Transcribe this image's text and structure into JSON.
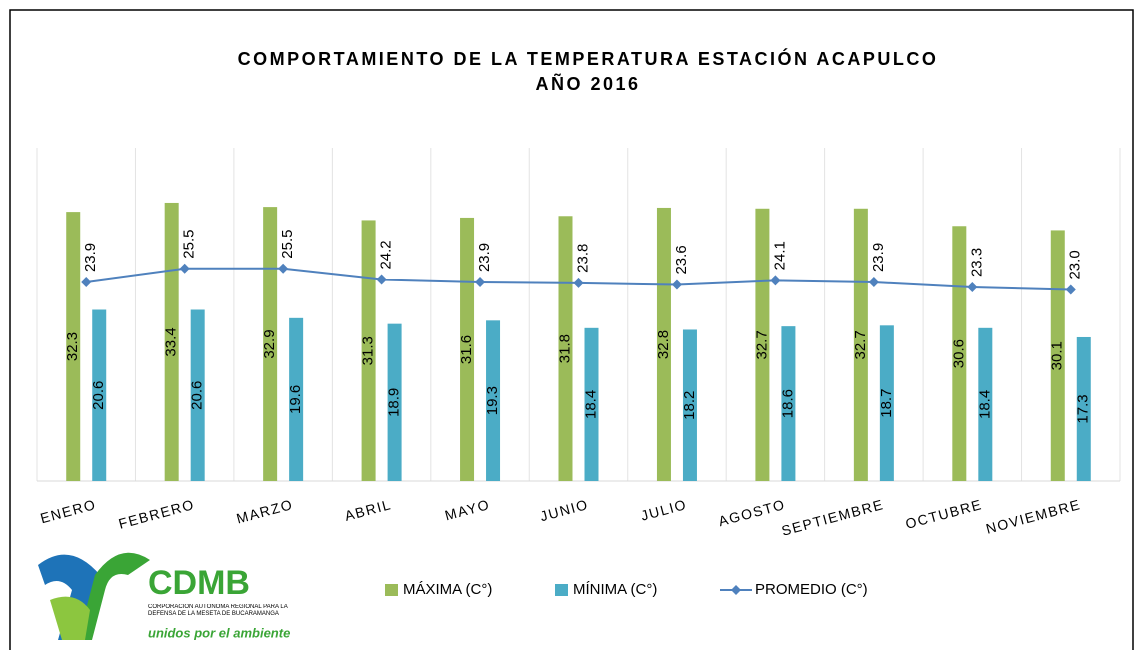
{
  "chart_data": {
    "type": "bar",
    "title": "COMPORTAMIENTO DE LA TEMPERATURA ESTACIÓN ACAPULCO",
    "subtitle": "AÑO 2016",
    "categories": [
      "ENERO",
      "FEBRERO",
      "MARZO",
      "ABRIL",
      "MAYO",
      "JUNIO",
      "JULIO",
      "AGOSTO",
      "SEPTIEMBRE",
      "OCTUBRE",
      "NOVIEMBRE"
    ],
    "ylim": [
      0,
      40
    ],
    "series": [
      {
        "name": "MÁXIMA (C°)",
        "type": "bar",
        "color": "#9bbb59",
        "values": [
          32.3,
          33.4,
          32.9,
          31.3,
          31.6,
          31.8,
          32.8,
          32.7,
          32.7,
          30.6,
          30.1
        ]
      },
      {
        "name": "MÍNIMA (C°)",
        "type": "bar",
        "color": "#4bacc6",
        "values": [
          20.6,
          20.6,
          19.6,
          18.9,
          19.3,
          18.4,
          18.2,
          18.6,
          18.7,
          18.4,
          17.3
        ]
      },
      {
        "name": "PROMEDIO (C°)",
        "type": "line",
        "color": "#4f81bd",
        "values": [
          23.9,
          25.5,
          25.5,
          24.2,
          23.9,
          23.8,
          23.6,
          24.1,
          23.9,
          23.3,
          23.0
        ],
        "value_labels": [
          "23.9",
          "25.5",
          "25.5",
          "24.2",
          "23.9",
          "23.8",
          "23.6",
          "24.1",
          "23.9",
          "23.3",
          "23.0"
        ]
      }
    ],
    "legend": "bottom"
  },
  "logo": {
    "name": "CDMB",
    "text": "CORPORACIÓN AUTÓNOMA REGIONAL PARA LA DEFENSA DE LA MESETA DE BUCARAMANGA",
    "slogan": "unidos por el ambiente"
  }
}
